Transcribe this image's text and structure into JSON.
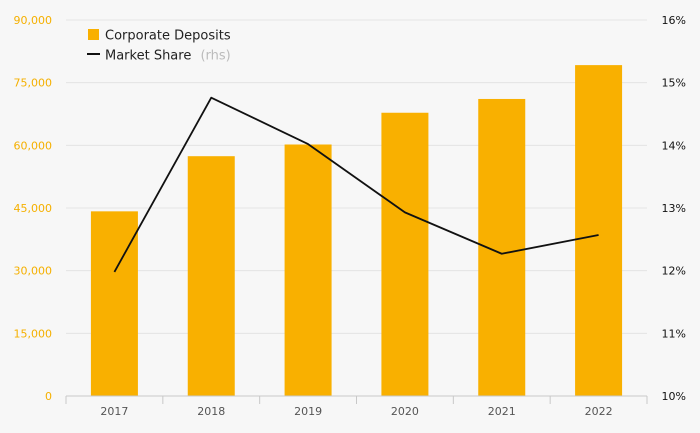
{
  "chart_data": {
    "type": "bar",
    "categories": [
      "2017",
      "2018",
      "2019",
      "2020",
      "2021",
      "2022"
    ],
    "series": [
      {
        "name": "Corporate Deposits",
        "type": "bar",
        "axis": "left",
        "color": "#f9b000",
        "values": [
          44200,
          57400,
          60200,
          67800,
          71100,
          79200
        ]
      },
      {
        "name": "Market Share",
        "suffix": "(rhs)",
        "type": "line",
        "axis": "right",
        "color": "#111111",
        "values": [
          11.98,
          14.76,
          14.02,
          12.93,
          12.27,
          12.57
        ]
      }
    ],
    "y_left": {
      "ylim": [
        0,
        90000
      ],
      "ticks": [
        "0",
        "15,000",
        "30,000",
        "45,000",
        "60,000",
        "75,000",
        "90,000"
      ],
      "tick_color": "#f5b000"
    },
    "y_right": {
      "ylim": [
        10,
        16
      ],
      "ticks": [
        "10%",
        "11%",
        "12%",
        "13%",
        "14%",
        "15%",
        "16%"
      ]
    },
    "legend": {
      "placement": "top-left"
    },
    "grid": true,
    "title": "",
    "xlabel": "",
    "ylabel": ""
  }
}
